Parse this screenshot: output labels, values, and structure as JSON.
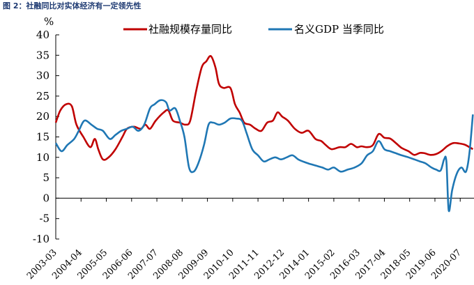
{
  "figure_title": "图 2：社融同比对实体经济有一定领先性",
  "chart_data": {
    "type": "line",
    "title": "社融同比对实体经济有一定领先性",
    "ylabel": "%",
    "xlabel": "",
    "ylim": [
      -10,
      40
    ],
    "yticks": [
      -10,
      -5,
      0,
      5,
      10,
      15,
      20,
      25,
      30,
      35,
      40
    ],
    "xlim": [
      2003.0,
      2021.2
    ],
    "xticks": [
      "2003-03",
      "2004-04",
      "2005-05",
      "2006-06",
      "2007-07",
      "2008-08",
      "2009-09",
      "2010-10",
      "2011-11",
      "2012-12",
      "2014-01",
      "2015-02",
      "2016-03",
      "2017-04",
      "2018-05",
      "2019-06",
      "2020-07"
    ],
    "legend": "top",
    "series": [
      {
        "name": "社融规模存量同比",
        "color": "#c00000",
        "x": [
          2003.0,
          2003.2,
          2003.45,
          2003.7,
          2003.9,
          2004.2,
          2004.5,
          2004.7,
          2004.85,
          2005.05,
          2005.3,
          2005.6,
          2005.9,
          2006.1,
          2006.4,
          2006.7,
          2006.9,
          2007.1,
          2007.35,
          2007.7,
          2007.9,
          2008.1,
          2008.4,
          2008.65,
          2008.85,
          2009.1,
          2009.35,
          2009.55,
          2009.75,
          2009.95,
          2010.1,
          2010.3,
          2010.6,
          2010.8,
          2011.0,
          2011.2,
          2011.45,
          2011.7,
          2011.95,
          2012.2,
          2012.45,
          2012.65,
          2012.85,
          2013.1,
          2013.4,
          2013.7,
          2014.0,
          2014.3,
          2014.55,
          2014.75,
          2015.0,
          2015.35,
          2015.6,
          2015.85,
          2016.1,
          2016.3,
          2016.55,
          2016.8,
          2017.05,
          2017.3,
          2017.55,
          2017.8,
          2018.05,
          2018.35,
          2018.6,
          2018.85,
          2019.05,
          2019.3,
          2019.55,
          2019.8,
          2020.05,
          2020.3,
          2020.55,
          2020.8,
          2021.0,
          2021.15
        ],
        "values": [
          18.5,
          21.5,
          23.0,
          22.5,
          18.0,
          15.0,
          12.5,
          14.5,
          12.0,
          9.5,
          10.0,
          12.0,
          15.0,
          17.0,
          17.5,
          17.0,
          18.0,
          17.0,
          19.0,
          21.0,
          21.5,
          19.0,
          18.5,
          18.0,
          19.0,
          26.0,
          32.0,
          33.5,
          34.8,
          32.0,
          28.0,
          27.0,
          27.0,
          23.0,
          21.0,
          18.5,
          18.0,
          17.0,
          16.5,
          18.5,
          19.0,
          21.0,
          20.0,
          19.0,
          17.0,
          16.0,
          16.5,
          14.5,
          14.0,
          13.0,
          12.0,
          12.5,
          12.5,
          13.3,
          12.5,
          12.7,
          12.5,
          13.0,
          15.7,
          14.8,
          14.6,
          13.5,
          12.3,
          11.5,
          10.6,
          11.1,
          11.0,
          10.6,
          10.8,
          11.6,
          12.8,
          13.5,
          13.4,
          13.1,
          12.5,
          12.0
        ]
      },
      {
        "name": "名义GDP 当季同比",
        "color": "#1f77b4",
        "x": [
          2003.0,
          2003.25,
          2003.5,
          2003.8,
          2004.0,
          2004.25,
          2004.55,
          2004.8,
          2005.05,
          2005.35,
          2005.6,
          2005.85,
          2006.1,
          2006.35,
          2006.6,
          2006.85,
          2007.1,
          2007.3,
          2007.55,
          2007.8,
          2007.95,
          2008.2,
          2008.4,
          2008.6,
          2008.8,
          2009.0,
          2009.2,
          2009.45,
          2009.65,
          2009.85,
          2010.1,
          2010.35,
          2010.6,
          2010.85,
          2011.1,
          2011.3,
          2011.55,
          2011.8,
          2012.05,
          2012.3,
          2012.55,
          2012.8,
          2013.05,
          2013.3,
          2013.55,
          2013.75,
          2014.0,
          2014.3,
          2014.6,
          2014.85,
          2015.1,
          2015.4,
          2015.7,
          2016.0,
          2016.3,
          2016.55,
          2016.8,
          2017.05,
          2017.3,
          2017.55,
          2017.8,
          2018.05,
          2018.35,
          2018.6,
          2018.85,
          2019.1,
          2019.35,
          2019.55,
          2019.75,
          2019.9,
          2020.0,
          2020.1,
          2020.25,
          2020.45,
          2020.65,
          2020.85,
          2021.0,
          2021.15
        ],
        "values": [
          13.5,
          11.5,
          13.0,
          14.5,
          16.5,
          19.0,
          18.0,
          17.0,
          16.5,
          14.5,
          15.5,
          16.5,
          17.0,
          17.5,
          16.5,
          18.0,
          22.0,
          23.0,
          24.0,
          23.5,
          21.5,
          22.0,
          19.0,
          15.0,
          7.5,
          6.5,
          8.5,
          13.0,
          18.0,
          18.5,
          18.0,
          18.5,
          19.5,
          19.5,
          19.0,
          16.0,
          12.0,
          10.5,
          9.0,
          9.5,
          10.0,
          9.5,
          10.0,
          10.5,
          9.5,
          9.0,
          8.5,
          8.0,
          7.5,
          7.0,
          7.5,
          6.5,
          7.0,
          7.5,
          8.5,
          10.5,
          11.5,
          14.0,
          12.0,
          11.5,
          11.0,
          10.5,
          10.0,
          9.5,
          9.0,
          8.5,
          7.5,
          7.0,
          6.8,
          9.5,
          9.0,
          -3.0,
          2.0,
          6.0,
          7.5,
          6.5,
          11.0,
          20.5
        ]
      }
    ]
  }
}
